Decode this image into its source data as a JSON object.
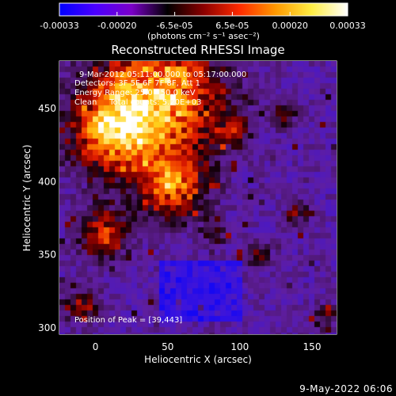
{
  "colorbar": {
    "tick_labels": [
      "-0.00033",
      "-0.00020",
      "-6.5e-05",
      "6.5e-05",
      "0.00020",
      "0.00033"
    ],
    "units_label": "(photons cm⁻² s⁻¹ asec⁻²)",
    "colors": [
      "#0000ff",
      "#4b00ff",
      "#7b00c8",
      "#000000",
      "#8b0000",
      "#ff2a00",
      "#ff9900",
      "#ffee44",
      "#ffffff"
    ]
  },
  "title": "Reconstructed RHESSI Image",
  "info": {
    "line1": "9-Mar-2012 05:11:00.000 to 05:17:00.000",
    "line2": "Detectors: 3F 5F 6F 7F 8F, Att 1",
    "line3": "Energy Range: 25.0 - 50.0 keV",
    "line4": "Clean     Total counts: 5.20E+03",
    "peak": "Position of Peak = [39,443]"
  },
  "axes": {
    "x": {
      "label": "Heliocentric X (arcsec)",
      "range": [
        -25,
        167
      ],
      "ticks": [
        0,
        50,
        100,
        150
      ],
      "tick_labels": [
        "0",
        "50",
        "100",
        "150"
      ]
    },
    "y": {
      "label": "Heliocentric Y (arcsec)",
      "range": [
        295,
        482
      ],
      "ticks": [
        300,
        350,
        400,
        450
      ],
      "tick_labels": [
        "300",
        "350",
        "400",
        "450"
      ]
    }
  },
  "peak_position": [
    39,
    443
  ],
  "footer_date": "9-May-2022 06:06"
}
